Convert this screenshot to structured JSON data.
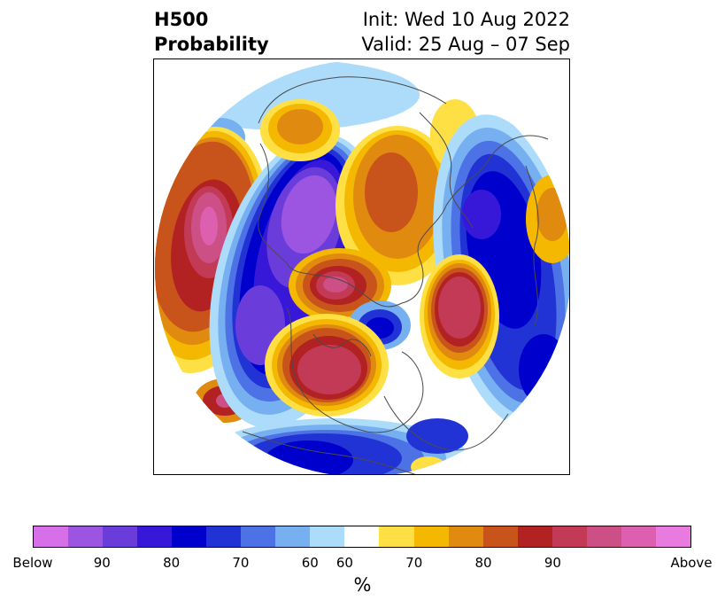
{
  "title": {
    "left_line1": "H500",
    "left_line2": "Probability",
    "right_line1": "Init: Wed 10 Aug 2022",
    "right_line2": "Valid: 25 Aug – 07 Sep"
  },
  "colorbar": {
    "colors": [
      "#d66fe8",
      "#9b55e0",
      "#6a3ddb",
      "#3718d8",
      "#0000cc",
      "#2233d6",
      "#4d72e5",
      "#77b0f0",
      "#addcfa",
      "#ffffff",
      "#ffe044",
      "#f5b800",
      "#e08a10",
      "#c8541c",
      "#b32222",
      "#c23a55",
      "#cc4f85",
      "#dc5fb0",
      "#e87ae0"
    ],
    "tick_labels": [
      "Below",
      "90",
      "80",
      "70",
      "60",
      "60",
      "70",
      "80",
      "90",
      "Above"
    ],
    "unit_label": "%"
  }
}
